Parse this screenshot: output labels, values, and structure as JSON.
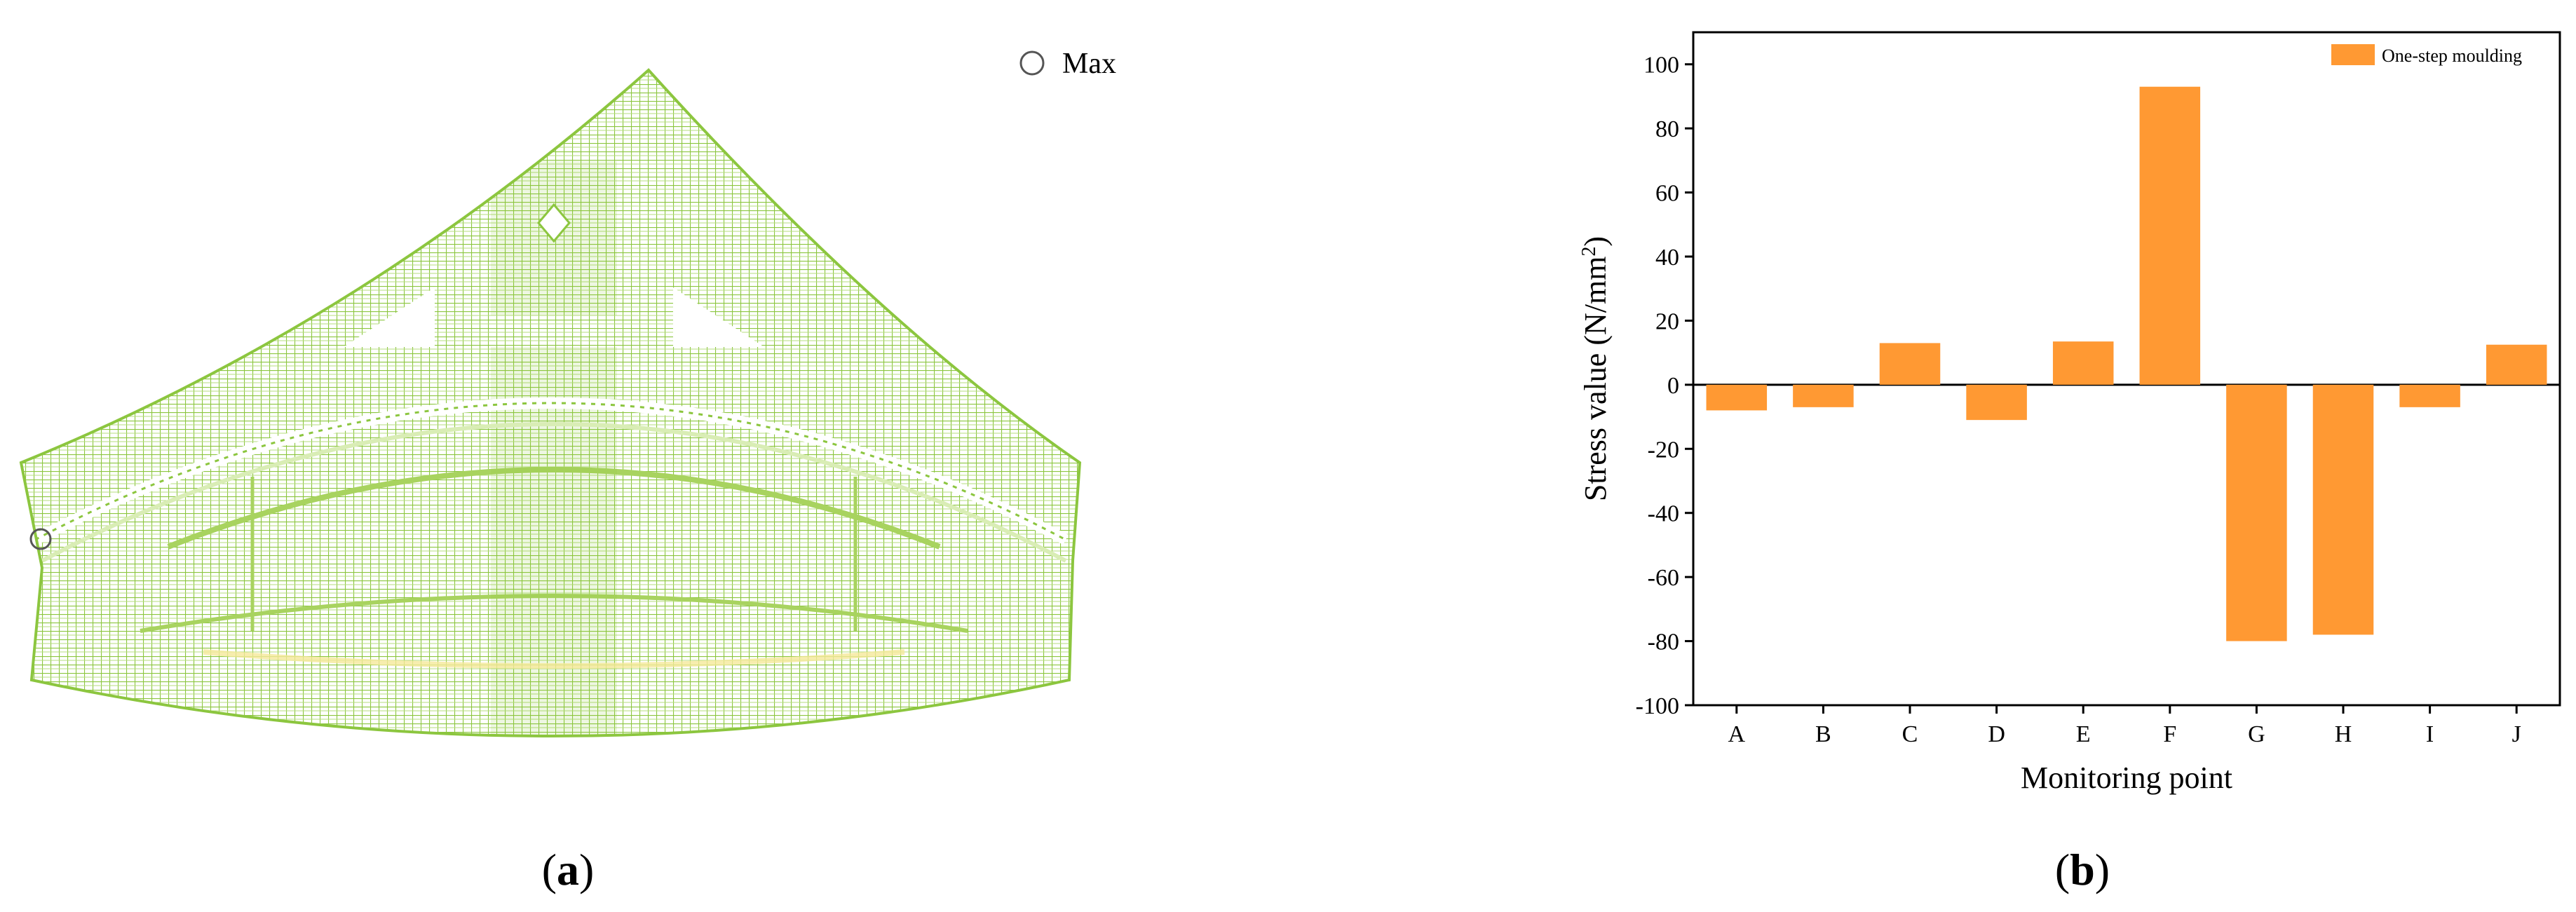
{
  "panel_a": {
    "label_open": "(",
    "label_letter": "a",
    "label_close": ")",
    "max_label": "Max",
    "mesh_color": "#8cc63f"
  },
  "panel_b": {
    "label_open": "(",
    "label_letter": "b",
    "label_close": ")"
  },
  "chart_data": {
    "type": "bar",
    "categories": [
      "A",
      "B",
      "C",
      "D",
      "E",
      "F",
      "G",
      "H",
      "I",
      "J"
    ],
    "series": [
      {
        "name": "One-step moulding",
        "values": [
          -8,
          -7,
          13,
          -11,
          13.5,
          93,
          -80,
          -78,
          -7,
          12.5
        ],
        "color": "#ff9933"
      }
    ],
    "xlabel": "Monitoring point",
    "ylabel_main": "Stress value (N/mm",
    "ylabel_sup": "2",
    "ylabel_close": ")",
    "ylim": [
      -100,
      110
    ],
    "yticks": [
      -100,
      -80,
      -60,
      -40,
      -20,
      0,
      20,
      40,
      60,
      80,
      100
    ],
    "legend_position": "top-right",
    "grid": false
  }
}
